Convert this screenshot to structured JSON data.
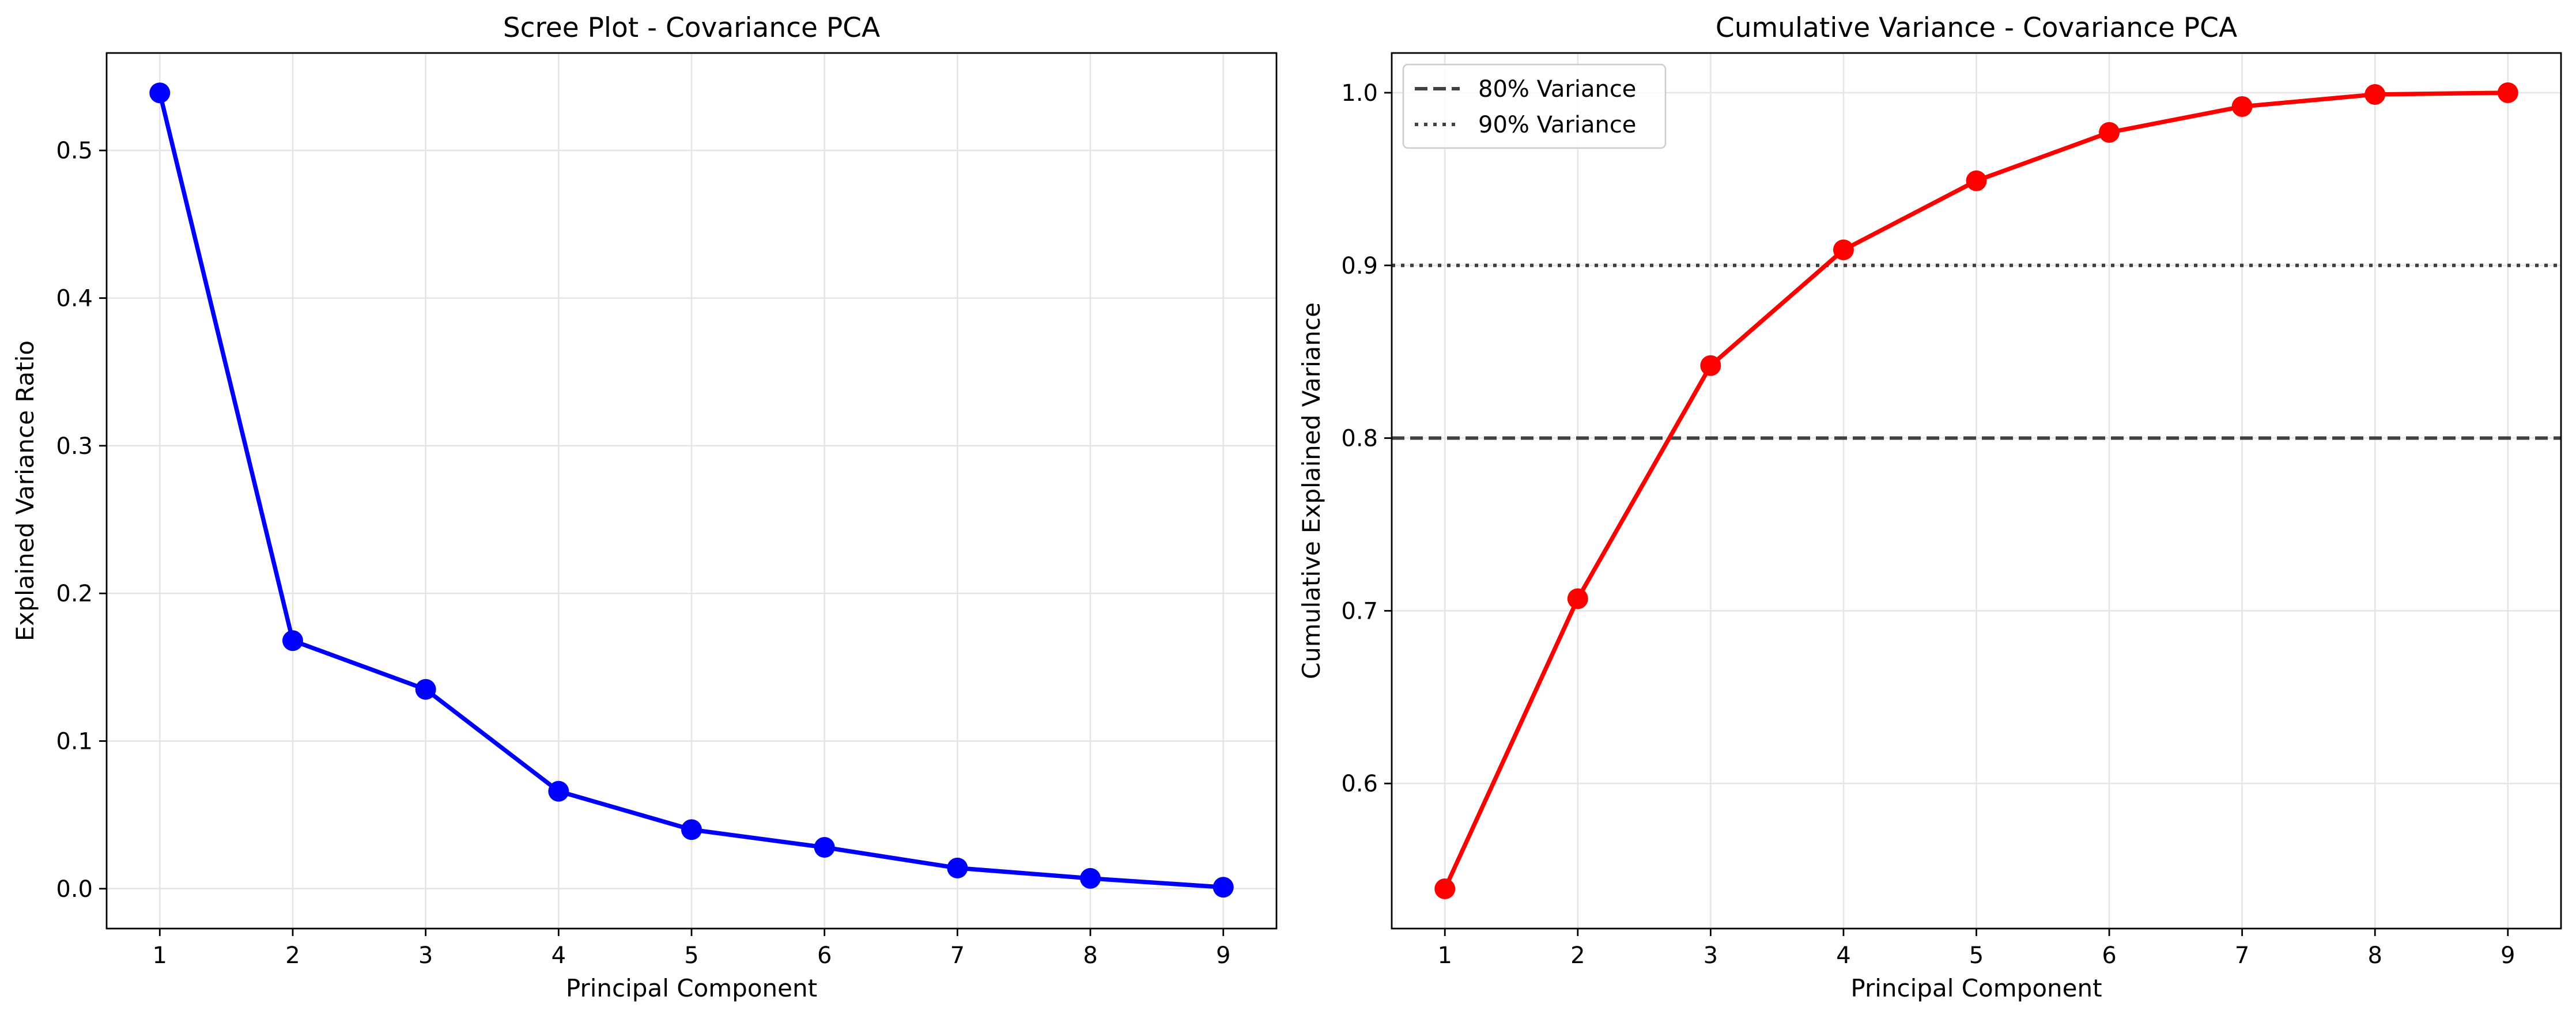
{
  "chart_data": [
    {
      "type": "line",
      "title": "Scree Plot - Covariance PCA",
      "xlabel": "Principal Component",
      "ylabel": "Explained Variance Ratio",
      "x": [
        1,
        2,
        3,
        4,
        5,
        6,
        7,
        8,
        9
      ],
      "xticks": [
        "1",
        "2",
        "3",
        "4",
        "5",
        "6",
        "7",
        "8",
        "9"
      ],
      "yticks": [
        "0.0",
        "0.1",
        "0.2",
        "0.3",
        "0.4",
        "0.5"
      ],
      "ytick_values": [
        0.0,
        0.1,
        0.2,
        0.3,
        0.4,
        0.5
      ],
      "xlim": [
        0.6,
        9.4
      ],
      "ylim": [
        -0.027,
        0.566
      ],
      "grid": true,
      "series": [
        {
          "values": [
            0.539,
            0.168,
            0.135,
            0.066,
            0.04,
            0.028,
            0.014,
            0.007,
            0.001
          ],
          "color": "#0000ff",
          "marker": "circle"
        }
      ]
    },
    {
      "type": "line",
      "title": "Cumulative Variance - Covariance PCA",
      "xlabel": "Principal Component",
      "ylabel": "Cumulative Explained Variance",
      "x": [
        1,
        2,
        3,
        4,
        5,
        6,
        7,
        8,
        9
      ],
      "xticks": [
        "1",
        "2",
        "3",
        "4",
        "5",
        "6",
        "7",
        "8",
        "9"
      ],
      "yticks": [
        "0.6",
        "0.7",
        "0.8",
        "0.9",
        "1.0"
      ],
      "ytick_values": [
        0.6,
        0.7,
        0.8,
        0.9,
        1.0
      ],
      "xlim": [
        0.6,
        9.4
      ],
      "ylim": [
        0.516,
        1.023
      ],
      "grid": true,
      "legend_position": "top-left",
      "series": [
        {
          "values": [
            0.539,
            0.707,
            0.842,
            0.909,
            0.949,
            0.977,
            0.992,
            0.999,
            1.0
          ],
          "color": "#ff0000",
          "marker": "circle"
        }
      ],
      "reference_lines": [
        {
          "name": "80% Variance",
          "value": 0.8,
          "style": "dashed",
          "color": "#404040"
        },
        {
          "name": "90% Variance",
          "value": 0.9,
          "style": "dotted",
          "color": "#404040"
        }
      ]
    }
  ]
}
